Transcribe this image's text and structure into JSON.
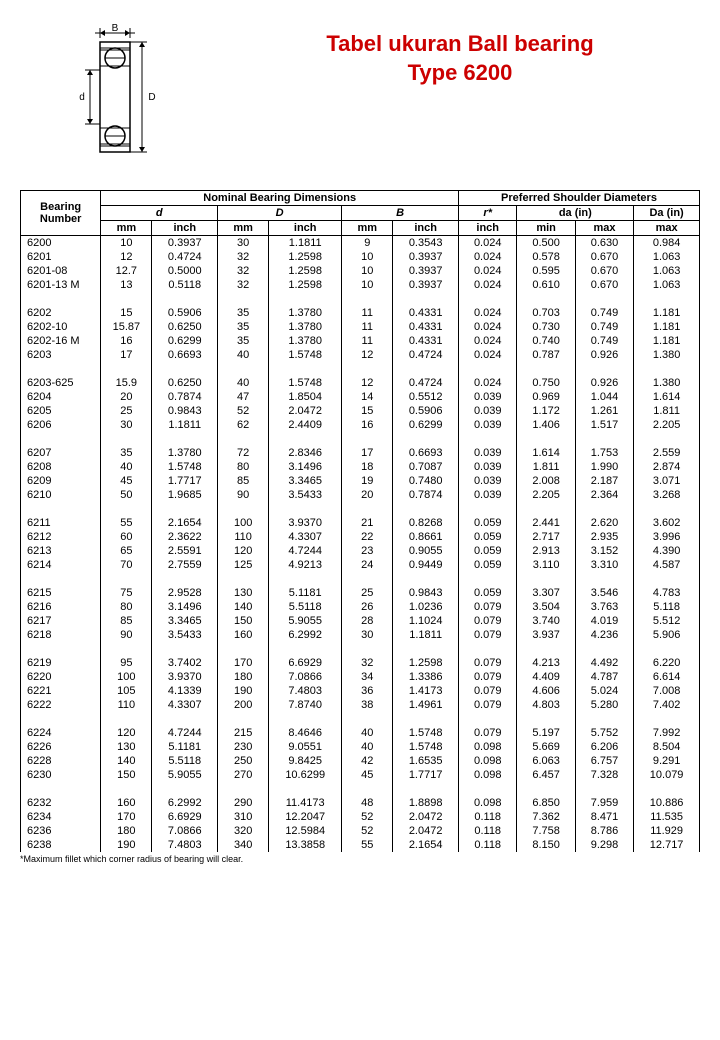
{
  "title": {
    "line1": "Tabel ukuran Ball bearing",
    "line2": "Type 6200",
    "color": "#cc0000",
    "fontsize": 22
  },
  "diagram": {
    "label_B": "B",
    "label_d": "d",
    "label_D": "D"
  },
  "headers": {
    "bearing_number": "Bearing Number",
    "nominal": "Nominal Bearing Dimensions",
    "preferred": "Preferred Shoulder Diameters",
    "d": "d",
    "D": "D",
    "B": "B",
    "r": "r*",
    "da": "da (in)",
    "Da": "Da (in)",
    "mm": "mm",
    "inch": "inch",
    "min": "min",
    "max": "max"
  },
  "footnote": "*Maximum fillet which corner radius of bearing will clear.",
  "groups": [
    [
      [
        "6200",
        "10",
        "0.3937",
        "30",
        "1.1811",
        "9",
        "0.3543",
        "0.024",
        "0.500",
        "0.630",
        "0.984"
      ],
      [
        "6201",
        "12",
        "0.4724",
        "32",
        "1.2598",
        "10",
        "0.3937",
        "0.024",
        "0.578",
        "0.670",
        "1.063"
      ],
      [
        "6201-08",
        "12.7",
        "0.5000",
        "32",
        "1.2598",
        "10",
        "0.3937",
        "0.024",
        "0.595",
        "0.670",
        "1.063"
      ],
      [
        "6201-13 M",
        "13",
        "0.5118",
        "32",
        "1.2598",
        "10",
        "0.3937",
        "0.024",
        "0.610",
        "0.670",
        "1.063"
      ]
    ],
    [
      [
        "6202",
        "15",
        "0.5906",
        "35",
        "1.3780",
        "11",
        "0.4331",
        "0.024",
        "0.703",
        "0.749",
        "1.181"
      ],
      [
        "6202-10",
        "15.87",
        "0.6250",
        "35",
        "1.3780",
        "11",
        "0.4331",
        "0.024",
        "0.730",
        "0.749",
        "1.181"
      ],
      [
        "6202-16 M",
        "16",
        "0.6299",
        "35",
        "1.3780",
        "11",
        "0.4331",
        "0.024",
        "0.740",
        "0.749",
        "1.181"
      ],
      [
        "6203",
        "17",
        "0.6693",
        "40",
        "1.5748",
        "12",
        "0.4724",
        "0.024",
        "0.787",
        "0.926",
        "1.380"
      ]
    ],
    [
      [
        "6203-625",
        "15.9",
        "0.6250",
        "40",
        "1.5748",
        "12",
        "0.4724",
        "0.024",
        "0.750",
        "0.926",
        "1.380"
      ],
      [
        "6204",
        "20",
        "0.7874",
        "47",
        "1.8504",
        "14",
        "0.5512",
        "0.039",
        "0.969",
        "1.044",
        "1.614"
      ],
      [
        "6205",
        "25",
        "0.9843",
        "52",
        "2.0472",
        "15",
        "0.5906",
        "0.039",
        "1.172",
        "1.261",
        "1.811"
      ],
      [
        "6206",
        "30",
        "1.1811",
        "62",
        "2.4409",
        "16",
        "0.6299",
        "0.039",
        "1.406",
        "1.517",
        "2.205"
      ]
    ],
    [
      [
        "6207",
        "35",
        "1.3780",
        "72",
        "2.8346",
        "17",
        "0.6693",
        "0.039",
        "1.614",
        "1.753",
        "2.559"
      ],
      [
        "6208",
        "40",
        "1.5748",
        "80",
        "3.1496",
        "18",
        "0.7087",
        "0.039",
        "1.811",
        "1.990",
        "2.874"
      ],
      [
        "6209",
        "45",
        "1.7717",
        "85",
        "3.3465",
        "19",
        "0.7480",
        "0.039",
        "2.008",
        "2.187",
        "3.071"
      ],
      [
        "6210",
        "50",
        "1.9685",
        "90",
        "3.5433",
        "20",
        "0.7874",
        "0.039",
        "2.205",
        "2.364",
        "3.268"
      ]
    ],
    [
      [
        "6211",
        "55",
        "2.1654",
        "100",
        "3.9370",
        "21",
        "0.8268",
        "0.059",
        "2.441",
        "2.620",
        "3.602"
      ],
      [
        "6212",
        "60",
        "2.3622",
        "110",
        "4.3307",
        "22",
        "0.8661",
        "0.059",
        "2.717",
        "2.935",
        "3.996"
      ],
      [
        "6213",
        "65",
        "2.5591",
        "120",
        "4.7244",
        "23",
        "0.9055",
        "0.059",
        "2.913",
        "3.152",
        "4.390"
      ],
      [
        "6214",
        "70",
        "2.7559",
        "125",
        "4.9213",
        "24",
        "0.9449",
        "0.059",
        "3.110",
        "3.310",
        "4.587"
      ]
    ],
    [
      [
        "6215",
        "75",
        "2.9528",
        "130",
        "5.1181",
        "25",
        "0.9843",
        "0.059",
        "3.307",
        "3.546",
        "4.783"
      ],
      [
        "6216",
        "80",
        "3.1496",
        "140",
        "5.5118",
        "26",
        "1.0236",
        "0.079",
        "3.504",
        "3.763",
        "5.118"
      ],
      [
        "6217",
        "85",
        "3.3465",
        "150",
        "5.9055",
        "28",
        "1.1024",
        "0.079",
        "3.740",
        "4.019",
        "5.512"
      ],
      [
        "6218",
        "90",
        "3.5433",
        "160",
        "6.2992",
        "30",
        "1.1811",
        "0.079",
        "3.937",
        "4.236",
        "5.906"
      ]
    ],
    [
      [
        "6219",
        "95",
        "3.7402",
        "170",
        "6.6929",
        "32",
        "1.2598",
        "0.079",
        "4.213",
        "4.492",
        "6.220"
      ],
      [
        "6220",
        "100",
        "3.9370",
        "180",
        "7.0866",
        "34",
        "1.3386",
        "0.079",
        "4.409",
        "4.787",
        "6.614"
      ],
      [
        "6221",
        "105",
        "4.1339",
        "190",
        "7.4803",
        "36",
        "1.4173",
        "0.079",
        "4.606",
        "5.024",
        "7.008"
      ],
      [
        "6222",
        "110",
        "4.3307",
        "200",
        "7.8740",
        "38",
        "1.4961",
        "0.079",
        "4.803",
        "5.280",
        "7.402"
      ]
    ],
    [
      [
        "6224",
        "120",
        "4.7244",
        "215",
        "8.4646",
        "40",
        "1.5748",
        "0.079",
        "5.197",
        "5.752",
        "7.992"
      ],
      [
        "6226",
        "130",
        "5.1181",
        "230",
        "9.0551",
        "40",
        "1.5748",
        "0.098",
        "5.669",
        "6.206",
        "8.504"
      ],
      [
        "6228",
        "140",
        "5.5118",
        "250",
        "9.8425",
        "42",
        "1.6535",
        "0.098",
        "6.063",
        "6.757",
        "9.291"
      ],
      [
        "6230",
        "150",
        "5.9055",
        "270",
        "10.6299",
        "45",
        "1.7717",
        "0.098",
        "6.457",
        "7.328",
        "10.079"
      ]
    ],
    [
      [
        "6232",
        "160",
        "6.2992",
        "290",
        "11.4173",
        "48",
        "1.8898",
        "0.098",
        "6.850",
        "7.959",
        "10.886"
      ],
      [
        "6234",
        "170",
        "6.6929",
        "310",
        "12.2047",
        "52",
        "2.0472",
        "0.118",
        "7.362",
        "8.471",
        "11.535"
      ],
      [
        "6236",
        "180",
        "7.0866",
        "320",
        "12.5984",
        "52",
        "2.0472",
        "0.118",
        "7.758",
        "8.786",
        "11.929"
      ],
      [
        "6238",
        "190",
        "7.4803",
        "340",
        "13.3858",
        "55",
        "2.1654",
        "0.118",
        "8.150",
        "9.298",
        "12.717"
      ]
    ]
  ]
}
